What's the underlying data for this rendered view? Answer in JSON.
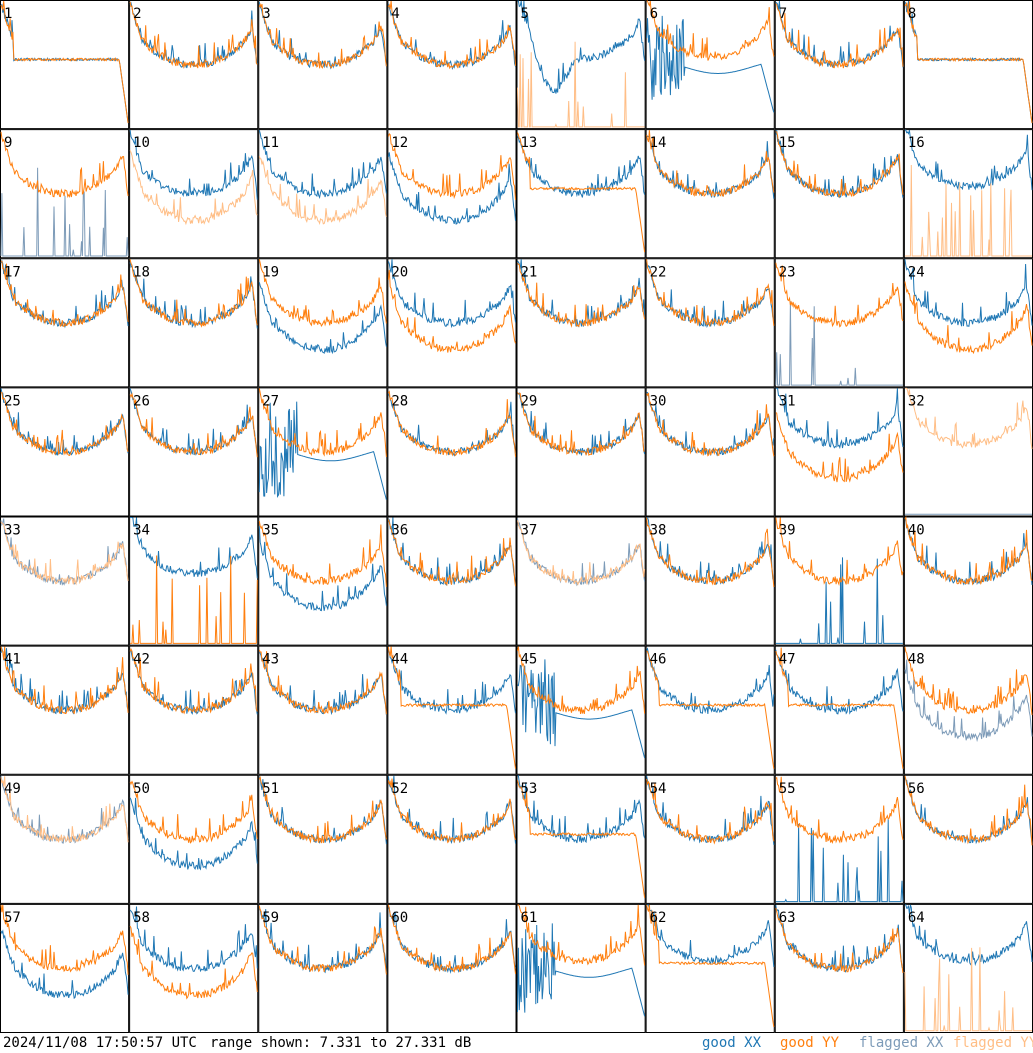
{
  "chart_data": {
    "type": "line",
    "title": "",
    "range_text": "range shown: 7.331 to 27.331 dB",
    "ylim": [
      7.331,
      27.331
    ],
    "grid": {
      "rows": 8,
      "cols": 8
    },
    "timestamp": "2024/11/08 17:50:57 UTC",
    "legend": {
      "placement": "bottom-right",
      "entries": [
        {
          "key": "good_xx",
          "label": "good XX",
          "color": "#1f77b4"
        },
        {
          "key": "good_yy",
          "label": "good YY",
          "color": "#ff7f0e"
        },
        {
          "key": "flagged_xx",
          "label": "flagged XX",
          "color": "#7d9bb8"
        },
        {
          "key": "flagged_yy",
          "label": "flagged YY",
          "color": "#ffbe86"
        }
      ]
    },
    "panels": [
      {
        "label": "1",
        "xx": "good",
        "yy": "good",
        "xx_shape": "drop",
        "yy_shape": "drop"
      },
      {
        "label": "2",
        "xx": "good",
        "yy": "good",
        "xx_shape": "normal",
        "yy_shape": "normal"
      },
      {
        "label": "3",
        "xx": "good",
        "yy": "good",
        "xx_shape": "normal",
        "yy_shape": "normal"
      },
      {
        "label": "4",
        "xx": "good",
        "yy": "good",
        "xx_shape": "normal",
        "yy_shape": "normal"
      },
      {
        "label": "5",
        "xx": "good",
        "yy": "flagged",
        "xx_shape": "highdip",
        "yy_shape": "spikes"
      },
      {
        "label": "6",
        "xx": "good",
        "yy": "good",
        "xx_shape": "deepdip",
        "yy_shape": "high"
      },
      {
        "label": "7",
        "xx": "good",
        "yy": "good",
        "xx_shape": "normal",
        "yy_shape": "normal"
      },
      {
        "label": "8",
        "xx": "good",
        "yy": "good",
        "xx_shape": "drop",
        "yy_shape": "drop"
      },
      {
        "label": "9",
        "xx": "flagged",
        "yy": "good",
        "xx_shape": "spikes",
        "yy_shape": "normal"
      },
      {
        "label": "10",
        "xx": "good",
        "yy": "flagged",
        "xx_shape": "normal",
        "yy_shape": "low"
      },
      {
        "label": "11",
        "xx": "good",
        "yy": "flagged",
        "xx_shape": "normal",
        "yy_shape": "low"
      },
      {
        "label": "12",
        "xx": "good",
        "yy": "good",
        "xx_shape": "low",
        "yy_shape": "normal"
      },
      {
        "label": "13",
        "xx": "good",
        "yy": "good",
        "xx_shape": "normal",
        "yy_shape": "drop"
      },
      {
        "label": "14",
        "xx": "good",
        "yy": "good",
        "xx_shape": "normal",
        "yy_shape": "normal"
      },
      {
        "label": "15",
        "xx": "good",
        "yy": "good",
        "xx_shape": "normal",
        "yy_shape": "normal"
      },
      {
        "label": "16",
        "xx": "good",
        "yy": "flagged",
        "xx_shape": "high",
        "yy_shape": "spikes"
      },
      {
        "label": "17",
        "xx": "good",
        "yy": "good",
        "xx_shape": "normal",
        "yy_shape": "normal"
      },
      {
        "label": "18",
        "xx": "good",
        "yy": "good",
        "xx_shape": "normal",
        "yy_shape": "normal"
      },
      {
        "label": "19",
        "xx": "good",
        "yy": "good",
        "xx_shape": "low",
        "yy_shape": "normal"
      },
      {
        "label": "20",
        "xx": "good",
        "yy": "good",
        "xx_shape": "normal",
        "yy_shape": "low"
      },
      {
        "label": "21",
        "xx": "good",
        "yy": "good",
        "xx_shape": "normal",
        "yy_shape": "normal"
      },
      {
        "label": "22",
        "xx": "good",
        "yy": "good",
        "xx_shape": "normal",
        "yy_shape": "normal"
      },
      {
        "label": "23",
        "xx": "flagged",
        "yy": "good",
        "xx_shape": "spikes",
        "yy_shape": "normal"
      },
      {
        "label": "24",
        "xx": "good",
        "yy": "good",
        "xx_shape": "normal",
        "yy_shape": "low"
      },
      {
        "label": "25",
        "xx": "good",
        "yy": "good",
        "xx_shape": "normal",
        "yy_shape": "normal"
      },
      {
        "label": "26",
        "xx": "good",
        "yy": "good",
        "xx_shape": "normal",
        "yy_shape": "normal"
      },
      {
        "label": "27",
        "xx": "good",
        "yy": "good",
        "xx_shape": "deepdip",
        "yy_shape": "normal"
      },
      {
        "label": "28",
        "xx": "good",
        "yy": "good",
        "xx_shape": "normal",
        "yy_shape": "normal"
      },
      {
        "label": "29",
        "xx": "good",
        "yy": "good",
        "xx_shape": "normal",
        "yy_shape": "normal"
      },
      {
        "label": "30",
        "xx": "good",
        "yy": "good",
        "xx_shape": "normal",
        "yy_shape": "normal"
      },
      {
        "label": "31",
        "xx": "good",
        "yy": "good",
        "xx_shape": "high",
        "yy_shape": "low"
      },
      {
        "label": "32",
        "xx": "flagged",
        "yy": "flagged",
        "xx_shape": "flat0",
        "yy_shape": "high"
      },
      {
        "label": "33",
        "xx": "flagged",
        "yy": "flagged",
        "xx_shape": "normal",
        "yy_shape": "normal"
      },
      {
        "label": "34",
        "xx": "good",
        "yy": "good",
        "xx_shape": "high",
        "yy_shape": "spikes"
      },
      {
        "label": "35",
        "xx": "good",
        "yy": "good",
        "xx_shape": "low",
        "yy_shape": "normal"
      },
      {
        "label": "36",
        "xx": "good",
        "yy": "good",
        "xx_shape": "normal",
        "yy_shape": "normal"
      },
      {
        "label": "37",
        "xx": "flagged",
        "yy": "flagged",
        "xx_shape": "normal",
        "yy_shape": "normal"
      },
      {
        "label": "38",
        "xx": "good",
        "yy": "good",
        "xx_shape": "normal",
        "yy_shape": "normal"
      },
      {
        "label": "39",
        "xx": "good",
        "yy": "good",
        "xx_shape": "spikes",
        "yy_shape": "normal"
      },
      {
        "label": "40",
        "xx": "good",
        "yy": "good",
        "xx_shape": "normal",
        "yy_shape": "normal"
      },
      {
        "label": "41",
        "xx": "good",
        "yy": "good",
        "xx_shape": "normal",
        "yy_shape": "normal"
      },
      {
        "label": "42",
        "xx": "good",
        "yy": "good",
        "xx_shape": "normal",
        "yy_shape": "normal"
      },
      {
        "label": "43",
        "xx": "good",
        "yy": "good",
        "xx_shape": "normal",
        "yy_shape": "normal"
      },
      {
        "label": "44",
        "xx": "good",
        "yy": "good",
        "xx_shape": "normal",
        "yy_shape": "drop"
      },
      {
        "label": "45",
        "xx": "good",
        "yy": "good",
        "xx_shape": "deepdip",
        "yy_shape": "normal"
      },
      {
        "label": "46",
        "xx": "good",
        "yy": "good",
        "xx_shape": "normal",
        "yy_shape": "drop"
      },
      {
        "label": "47",
        "xx": "good",
        "yy": "good",
        "xx_shape": "normal",
        "yy_shape": "drop"
      },
      {
        "label": "48",
        "xx": "flagged",
        "yy": "good",
        "xx_shape": "low",
        "yy_shape": "normal"
      },
      {
        "label": "49",
        "xx": "flagged",
        "yy": "flagged",
        "xx_shape": "normal",
        "yy_shape": "normal"
      },
      {
        "label": "50",
        "xx": "good",
        "yy": "good",
        "xx_shape": "low",
        "yy_shape": "normal"
      },
      {
        "label": "51",
        "xx": "good",
        "yy": "good",
        "xx_shape": "normal",
        "yy_shape": "normal"
      },
      {
        "label": "52",
        "xx": "good",
        "yy": "good",
        "xx_shape": "normal",
        "yy_shape": "normal"
      },
      {
        "label": "53",
        "xx": "good",
        "yy": "good",
        "xx_shape": "normal",
        "yy_shape": "drop"
      },
      {
        "label": "54",
        "xx": "good",
        "yy": "good",
        "xx_shape": "normal",
        "yy_shape": "normal"
      },
      {
        "label": "55",
        "xx": "good",
        "yy": "good",
        "xx_shape": "spikes",
        "yy_shape": "normal"
      },
      {
        "label": "56",
        "xx": "good",
        "yy": "good",
        "xx_shape": "normal",
        "yy_shape": "normal"
      },
      {
        "label": "57",
        "xx": "good",
        "yy": "good",
        "xx_shape": "low",
        "yy_shape": "normal"
      },
      {
        "label": "58",
        "xx": "good",
        "yy": "good",
        "xx_shape": "normal",
        "yy_shape": "low"
      },
      {
        "label": "59",
        "xx": "good",
        "yy": "good",
        "xx_shape": "normal",
        "yy_shape": "normal"
      },
      {
        "label": "60",
        "xx": "good",
        "yy": "good",
        "xx_shape": "normal",
        "yy_shape": "normal"
      },
      {
        "label": "61",
        "xx": "good",
        "yy": "good",
        "xx_shape": "deepdip",
        "yy_shape": "high"
      },
      {
        "label": "62",
        "xx": "good",
        "yy": "good",
        "xx_shape": "high",
        "yy_shape": "drop"
      },
      {
        "label": "63",
        "xx": "good",
        "yy": "good",
        "xx_shape": "normal",
        "yy_shape": "normal"
      },
      {
        "label": "64",
        "xx": "good",
        "yy": "flagged",
        "xx_shape": "high",
        "yy_shape": "spikes"
      }
    ]
  }
}
